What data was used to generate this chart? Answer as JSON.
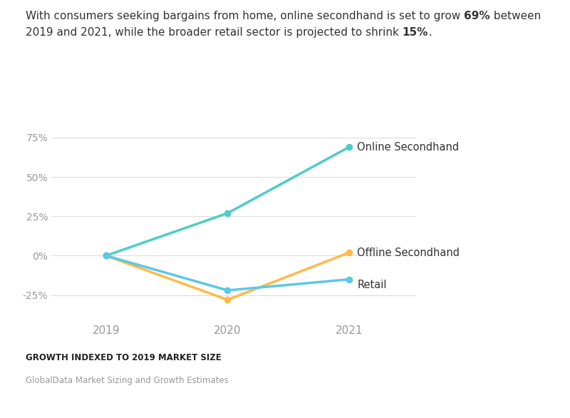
{
  "line1_normal": "With consumers seeking bargains from home, online secondhand is set to grow ",
  "line1_bold": "69%",
  "line1_end": " between",
  "line2_normal": "2019 and 2021, while the broader retail sector is projected to shrink ",
  "line2_bold": "15%",
  "line2_end": ".",
  "xlabel_bold": "GROWTH INDEXED TO 2019 MARKET SIZE",
  "source": "GlobalData Market Sizing and Growth Estimates",
  "years": [
    2019,
    2020,
    2021
  ],
  "online_secondhand": [
    0,
    27,
    69
  ],
  "offline_secondhand": [
    0,
    -28,
    2
  ],
  "retail": [
    0,
    -22,
    -15
  ],
  "online_color": "#4ECDC4",
  "offline_color": "#FFBA49",
  "retail_color": "#5BC8E8",
  "online_label": "Online Secondhand",
  "offline_label": "Offline Secondhand",
  "retail_label": "Retail",
  "ylim": [
    -42,
    88
  ],
  "yticks": [
    -25,
    0,
    25,
    50,
    75
  ],
  "background_color": "#FFFFFF",
  "line_width": 2.5,
  "marker_size": 6,
  "grid_color": "#DDDDDD",
  "text_color": "#333333",
  "tick_color": "#999999",
  "title_fontsize": 11,
  "label_fontsize": 10.5,
  "ytick_fontsize": 10,
  "xtick_fontsize": 11
}
